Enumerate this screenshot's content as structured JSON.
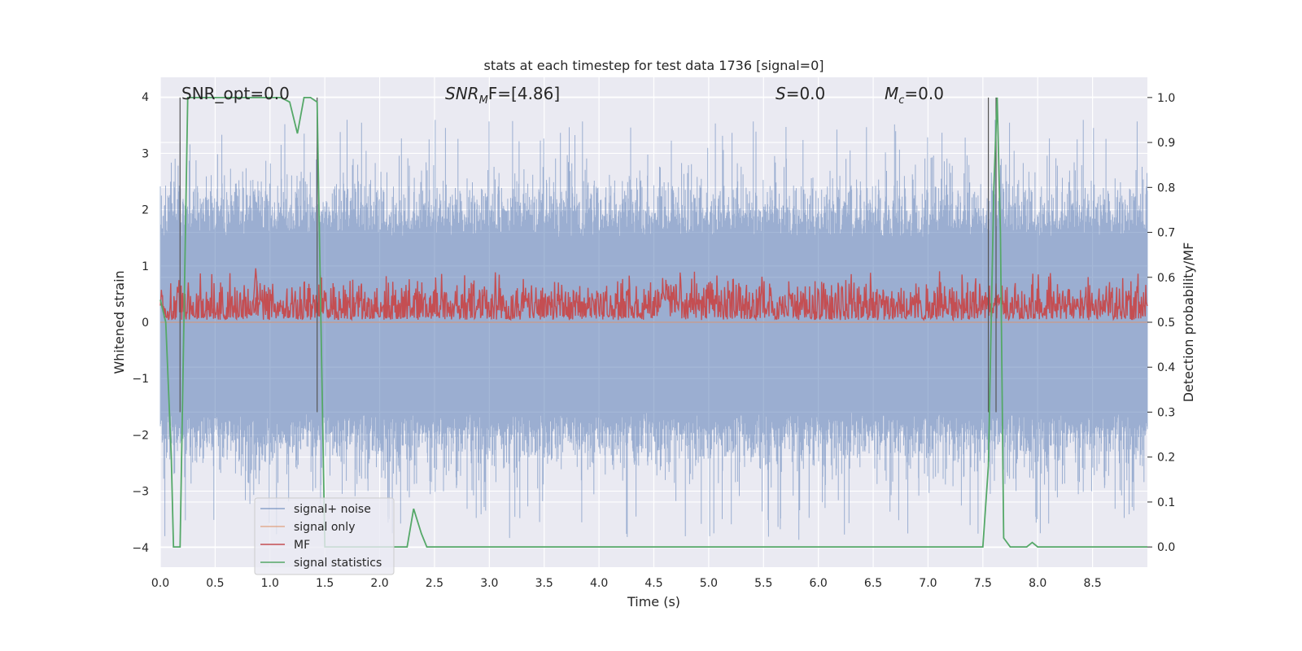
{
  "chart_data": {
    "type": "line",
    "title": "stats at each timestep for test data 1736 [signal=0]",
    "xlabel": "Time (s)",
    "ylabel_left": "Whitened strain",
    "ylabel_right": "Detection probability/MF",
    "xlim": [
      0.0,
      9.0
    ],
    "ylim_left": [
      -4.35,
      4.35
    ],
    "ylim_right": [
      -0.045,
      1.045
    ],
    "xticks": [
      "0.0",
      "0.5",
      "1.0",
      "1.5",
      "2.0",
      "2.5",
      "3.0",
      "3.5",
      "4.0",
      "4.5",
      "5.0",
      "5.5",
      "6.0",
      "6.5",
      "7.0",
      "7.5",
      "8.0",
      "8.5"
    ],
    "yticks_left": [
      "4",
      "3",
      "2",
      "1",
      "0",
      "−1",
      "−2",
      "−3",
      "−4"
    ],
    "yticks_left_values": [
      4,
      3,
      2,
      1,
      0,
      -1,
      -2,
      -3,
      -4
    ],
    "yticks_right": [
      "1.0",
      "0.9",
      "0.8",
      "0.7",
      "0.6",
      "0.5",
      "0.4",
      "0.3",
      "0.2",
      "0.1",
      "0.0"
    ],
    "yticks_right_values": [
      1.0,
      0.9,
      0.8,
      0.7,
      0.6,
      0.5,
      0.4,
      0.3,
      0.2,
      0.1,
      0.0
    ],
    "grid": true,
    "legend_placement": "lower-left",
    "annotations": {
      "snr_opt": "SNR_opt=0.0",
      "snr_mf_base": "SNR",
      "snr_mf_sub": "M",
      "snr_mf_rest": "F=[4.86]",
      "s_label": "S",
      "s_value": "=0.0",
      "mc_base": "M",
      "mc_sub": "c",
      "mc_value": "=0.0"
    },
    "series": [
      {
        "name": "signal+ noise",
        "color": "#4c72b0",
        "axis": "left",
        "description_values": {
          "typical_high": 1.5,
          "typical_low": -1.6,
          "peak_max": 3.6,
          "peak_min": -3.9
        }
      },
      {
        "name": "signal only",
        "color": "#dd8452",
        "axis": "left",
        "values": [
          [
            0.0,
            0.0
          ],
          [
            9.0,
            0.0
          ]
        ]
      },
      {
        "name": "MF",
        "color": "#c44e52",
        "axis": "right",
        "description_values": {
          "mean": 0.535,
          "spread": 0.03,
          "max": 0.62
        }
      },
      {
        "name": "signal statistics",
        "color": "#55a868",
        "axis": "right",
        "values": [
          [
            0.0,
            0.55
          ],
          [
            0.05,
            0.5
          ],
          [
            0.1,
            0.2
          ],
          [
            0.12,
            0.0
          ],
          [
            0.18,
            0.0
          ],
          [
            0.25,
            1.0
          ],
          [
            0.5,
            1.0
          ],
          [
            0.8,
            1.0
          ],
          [
            1.0,
            1.0
          ],
          [
            1.1,
            1.0
          ],
          [
            1.18,
            0.99
          ],
          [
            1.25,
            0.92
          ],
          [
            1.31,
            1.0
          ],
          [
            1.37,
            1.0
          ],
          [
            1.43,
            0.99
          ],
          [
            1.5,
            0.0
          ],
          [
            1.6,
            0.0
          ],
          [
            2.0,
            0.0
          ],
          [
            2.25,
            0.0
          ],
          [
            2.31,
            0.085
          ],
          [
            2.38,
            0.03
          ],
          [
            2.43,
            0.0
          ],
          [
            3.0,
            0.0
          ],
          [
            5.0,
            0.0
          ],
          [
            7.0,
            0.0
          ],
          [
            7.5,
            0.0
          ],
          [
            7.55,
            0.18
          ],
          [
            7.6,
            0.8
          ],
          [
            7.63,
            1.0
          ],
          [
            7.66,
            0.7
          ],
          [
            7.69,
            0.02
          ],
          [
            7.75,
            0.0
          ],
          [
            7.9,
            0.0
          ],
          [
            7.95,
            0.01
          ],
          [
            8.0,
            0.0
          ],
          [
            8.5,
            0.0
          ],
          [
            9.0,
            0.0
          ]
        ]
      }
    ],
    "vertical_markers": [
      0.18,
      1.43,
      7.55,
      7.62
    ]
  }
}
